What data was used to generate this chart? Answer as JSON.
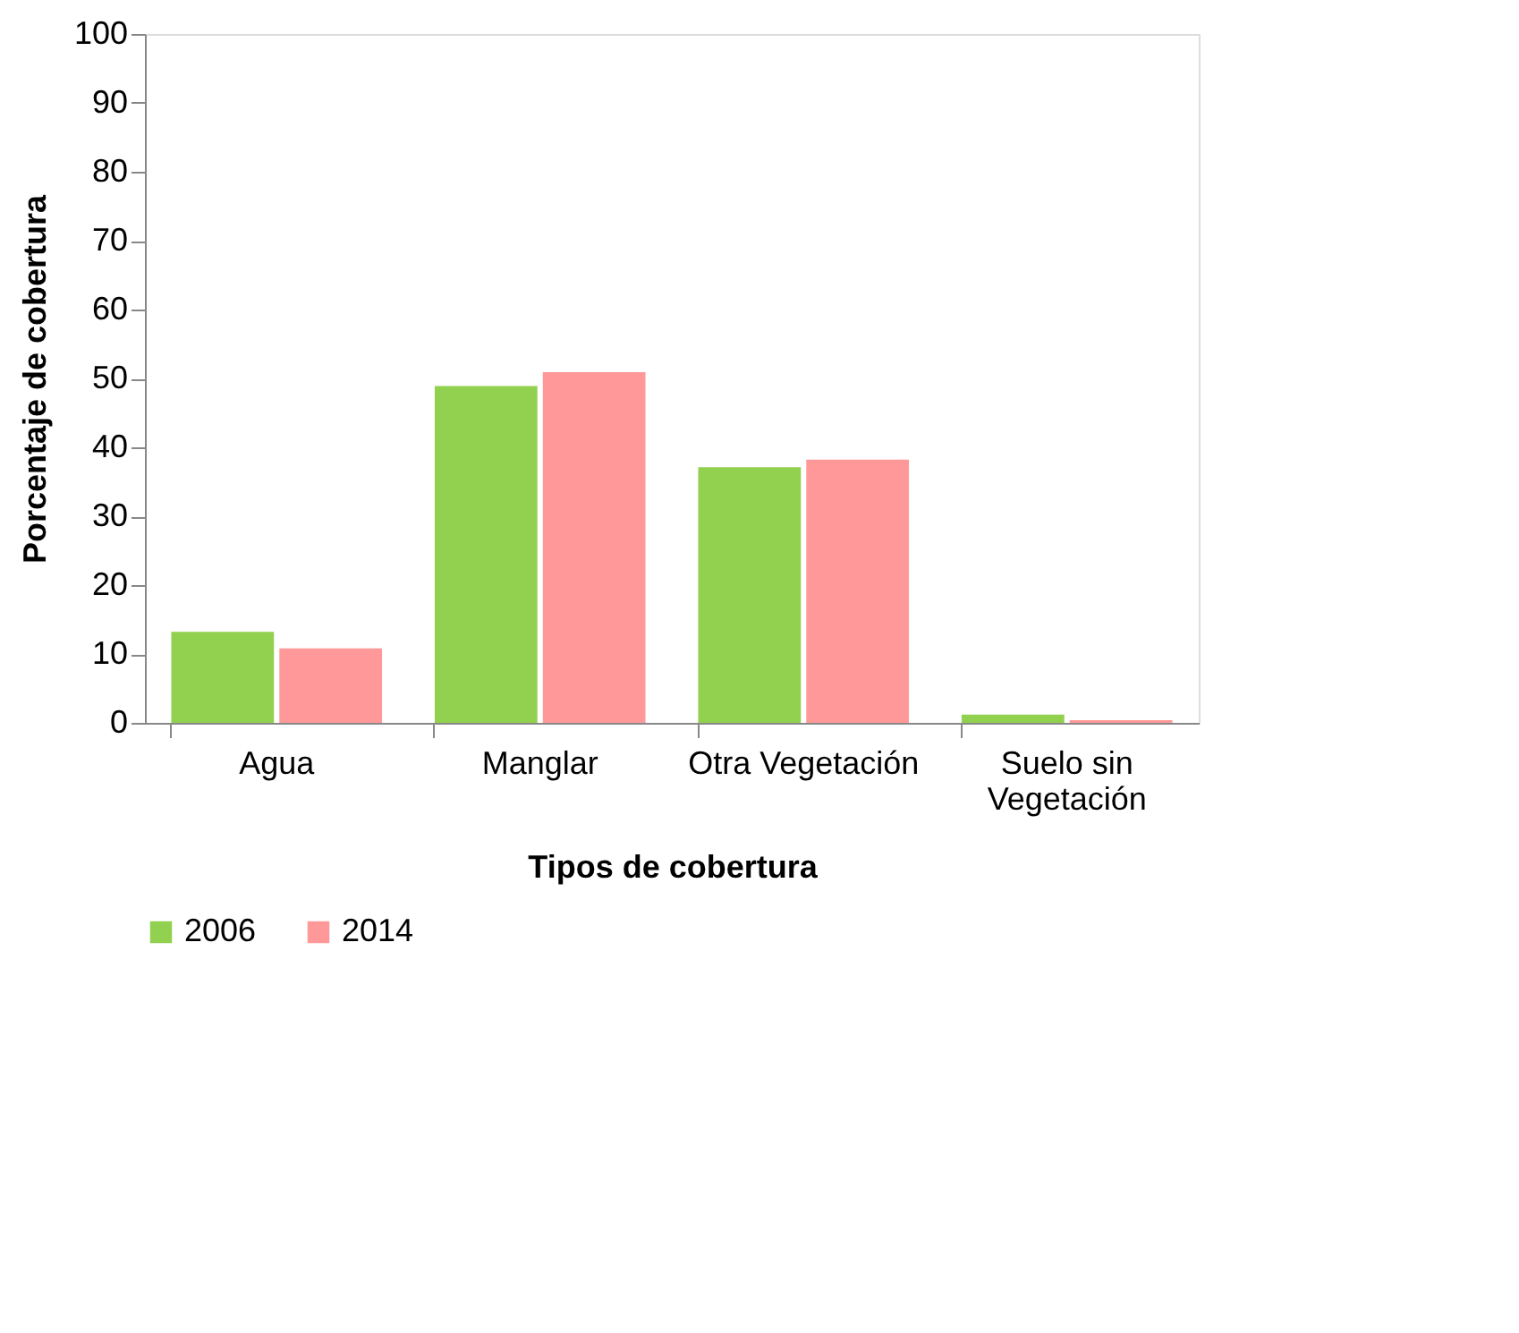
{
  "chart_data": {
    "type": "bar",
    "xlabel": "Tipos de cobertura",
    "ylabel": "Porcentaje de cobertura",
    "categories": [
      "Agua",
      "Manglar",
      "Otra Vegetación",
      "Suelo sin Vegetación"
    ],
    "series": [
      {
        "name": "2006",
        "color": "#92d050",
        "values": [
          13.2,
          48.9,
          37.1,
          1.2
        ]
      },
      {
        "name": "2014",
        "color": "#ff9999",
        "values": [
          10.8,
          50.9,
          38.2,
          0.4
        ]
      }
    ],
    "ylim": [
      0,
      100
    ],
    "yticks": [
      0,
      10,
      20,
      30,
      40,
      50,
      60,
      70,
      80,
      90,
      100
    ],
    "grid": false,
    "legend": "bottom"
  }
}
